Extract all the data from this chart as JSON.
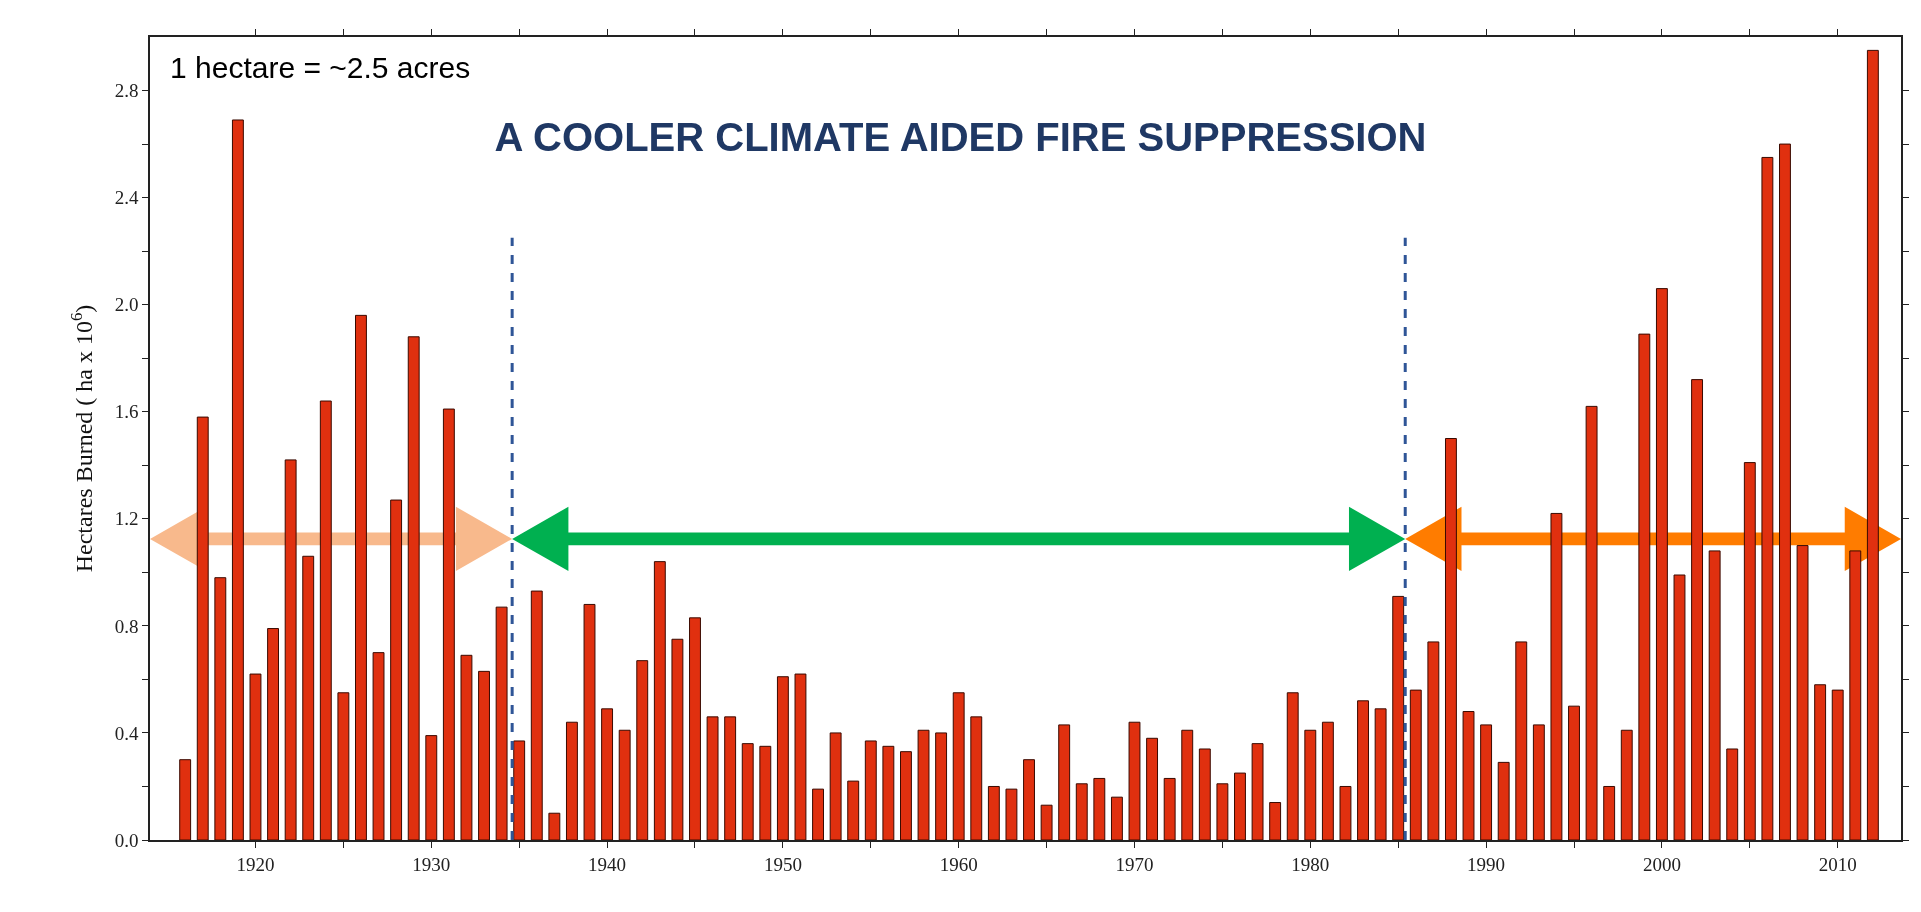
{
  "chart_data": {
    "type": "bar",
    "title": "A COOLER CLIMATE AIDED FIRE SUPPRESSION",
    "ylabel": "Hectares Burned ( ha x 10$^{6}$)",
    "annotations": [
      "1 hectare = ~2.5 acres"
    ],
    "x": [
      1916,
      1917,
      1918,
      1919,
      1920,
      1921,
      1922,
      1923,
      1924,
      1925,
      1926,
      1927,
      1928,
      1929,
      1930,
      1931,
      1932,
      1933,
      1934,
      1935,
      1936,
      1937,
      1938,
      1939,
      1940,
      1941,
      1942,
      1943,
      1944,
      1945,
      1946,
      1947,
      1948,
      1949,
      1950,
      1951,
      1952,
      1953,
      1954,
      1955,
      1956,
      1957,
      1958,
      1959,
      1960,
      1961,
      1962,
      1963,
      1964,
      1965,
      1966,
      1967,
      1968,
      1969,
      1970,
      1971,
      1972,
      1973,
      1974,
      1975,
      1976,
      1977,
      1978,
      1979,
      1980,
      1981,
      1982,
      1983,
      1984,
      1985,
      1986,
      1987,
      1988,
      1989,
      1990,
      1991,
      1992,
      1993,
      1994,
      1995,
      1996,
      1997,
      1998,
      1999,
      2000,
      2001,
      2002,
      2003,
      2004,
      2005,
      2006,
      2007,
      2008,
      2009,
      2010,
      2011,
      2012
    ],
    "values": [
      0.3,
      1.58,
      0.98,
      2.69,
      0.62,
      0.79,
      1.42,
      1.06,
      1.64,
      0.55,
      1.96,
      0.7,
      1.27,
      1.88,
      0.39,
      1.61,
      0.69,
      0.63,
      0.87,
      0.37,
      0.93,
      0.1,
      0.44,
      0.88,
      0.49,
      0.41,
      0.67,
      1.04,
      0.75,
      0.83,
      0.46,
      0.46,
      0.36,
      0.35,
      0.61,
      0.62,
      0.19,
      0.4,
      0.22,
      0.37,
      0.35,
      0.33,
      0.41,
      0.4,
      0.55,
      0.46,
      0.2,
      0.19,
      0.3,
      0.13,
      0.43,
      0.21,
      0.23,
      0.16,
      0.44,
      0.38,
      0.23,
      0.41,
      0.34,
      0.21,
      0.25,
      0.36,
      0.14,
      0.55,
      0.41,
      0.44,
      0.2,
      0.52,
      0.49,
      0.91,
      0.56,
      0.74,
      1.5,
      0.48,
      0.43,
      0.29,
      0.74,
      0.43,
      1.22,
      0.5,
      1.62,
      0.2,
      0.41,
      1.89,
      2.06,
      0.99,
      1.72,
      1.08,
      0.34,
      1.41,
      2.55,
      2.6,
      1.1,
      0.58,
      0.56,
      1.08,
      2.95
    ],
    "color": "#e0300f",
    "xlim": [
      1914,
      2013.6
    ],
    "xticks": [
      1920,
      {
        "value": 1925,
        "label": null
      },
      1930,
      {
        "value": 1935,
        "label": null
      },
      1940,
      {
        "value": 1945,
        "label": null
      },
      1950,
      {
        "value": 1955,
        "label": null
      },
      1960,
      {
        "value": 1965,
        "label": null
      },
      1970,
      {
        "value": 1975,
        "label": null
      },
      1980,
      {
        "value": 1985,
        "label": null
      },
      1990,
      {
        "value": 1995,
        "label": null
      },
      2000,
      {
        "value": 2005,
        "label": null
      },
      2010
    ],
    "ylim": [
      0,
      3.0
    ],
    "yticks": [
      {
        "value": 0,
        "label": "0.0"
      },
      {
        "value": 0.2,
        "label": null
      },
      0.4,
      {
        "value": 0.6,
        "label": null
      },
      0.8,
      {
        "value": 1.0,
        "label": null
      },
      1.2,
      {
        "value": 1.4,
        "label": null
      },
      1.6,
      {
        "value": 1.8,
        "label": null
      },
      {
        "value": 2.0,
        "label": "2.0"
      },
      {
        "value": 2.2,
        "label": null
      },
      2.4,
      {
        "value": 2.6,
        "label": null
      },
      2.8
    ],
    "ref_lines": [
      {
        "axis": "x",
        "value": 1934.6,
        "color": "#2f5597",
        "line_style": "dashed"
      },
      {
        "axis": "x",
        "value": 1985.4,
        "color": "#2f5597",
        "line_style": "dashed"
      }
    ],
    "grid": false
  }
}
